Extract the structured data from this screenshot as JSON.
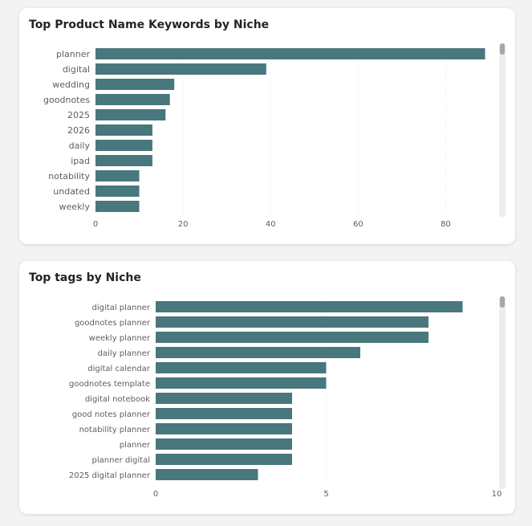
{
  "colors": {
    "bar": "#48777d",
    "label": "#605e5c",
    "grid": "#e3e3e3"
  },
  "chart_data": [
    {
      "type": "bar",
      "orientation": "horizontal",
      "title": "Top Product Name Keywords by Niche",
      "categories": [
        "planner",
        "digital",
        "wedding",
        "goodnotes",
        "2025",
        "2026",
        "daily",
        "ipad",
        "notability",
        "undated",
        "weekly"
      ],
      "values": [
        89,
        39,
        18,
        17,
        16,
        13,
        13,
        13,
        10,
        10,
        10
      ],
      "xlim": [
        0,
        90
      ],
      "xticks": [
        "0",
        "20",
        "40",
        "60",
        "80"
      ],
      "xtick_values": [
        0,
        20,
        40,
        60,
        80
      ],
      "grid": true
    },
    {
      "type": "bar",
      "orientation": "horizontal",
      "title": "Top tags by Niche",
      "categories": [
        "digital planner",
        "goodnotes planner",
        "weekly planner",
        "daily planner",
        "digital calendar",
        "goodnotes template",
        "digital notebook",
        "good notes planner",
        "notability planner",
        "planner",
        "planner digital",
        "2025 digital planner"
      ],
      "values": [
        9,
        8,
        8,
        6,
        5,
        5,
        4,
        4,
        4,
        4,
        4,
        3
      ],
      "xlim": [
        0,
        10
      ],
      "xticks": [
        "0",
        "5",
        "10"
      ],
      "xtick_values": [
        0,
        5,
        10
      ],
      "grid": true
    }
  ]
}
